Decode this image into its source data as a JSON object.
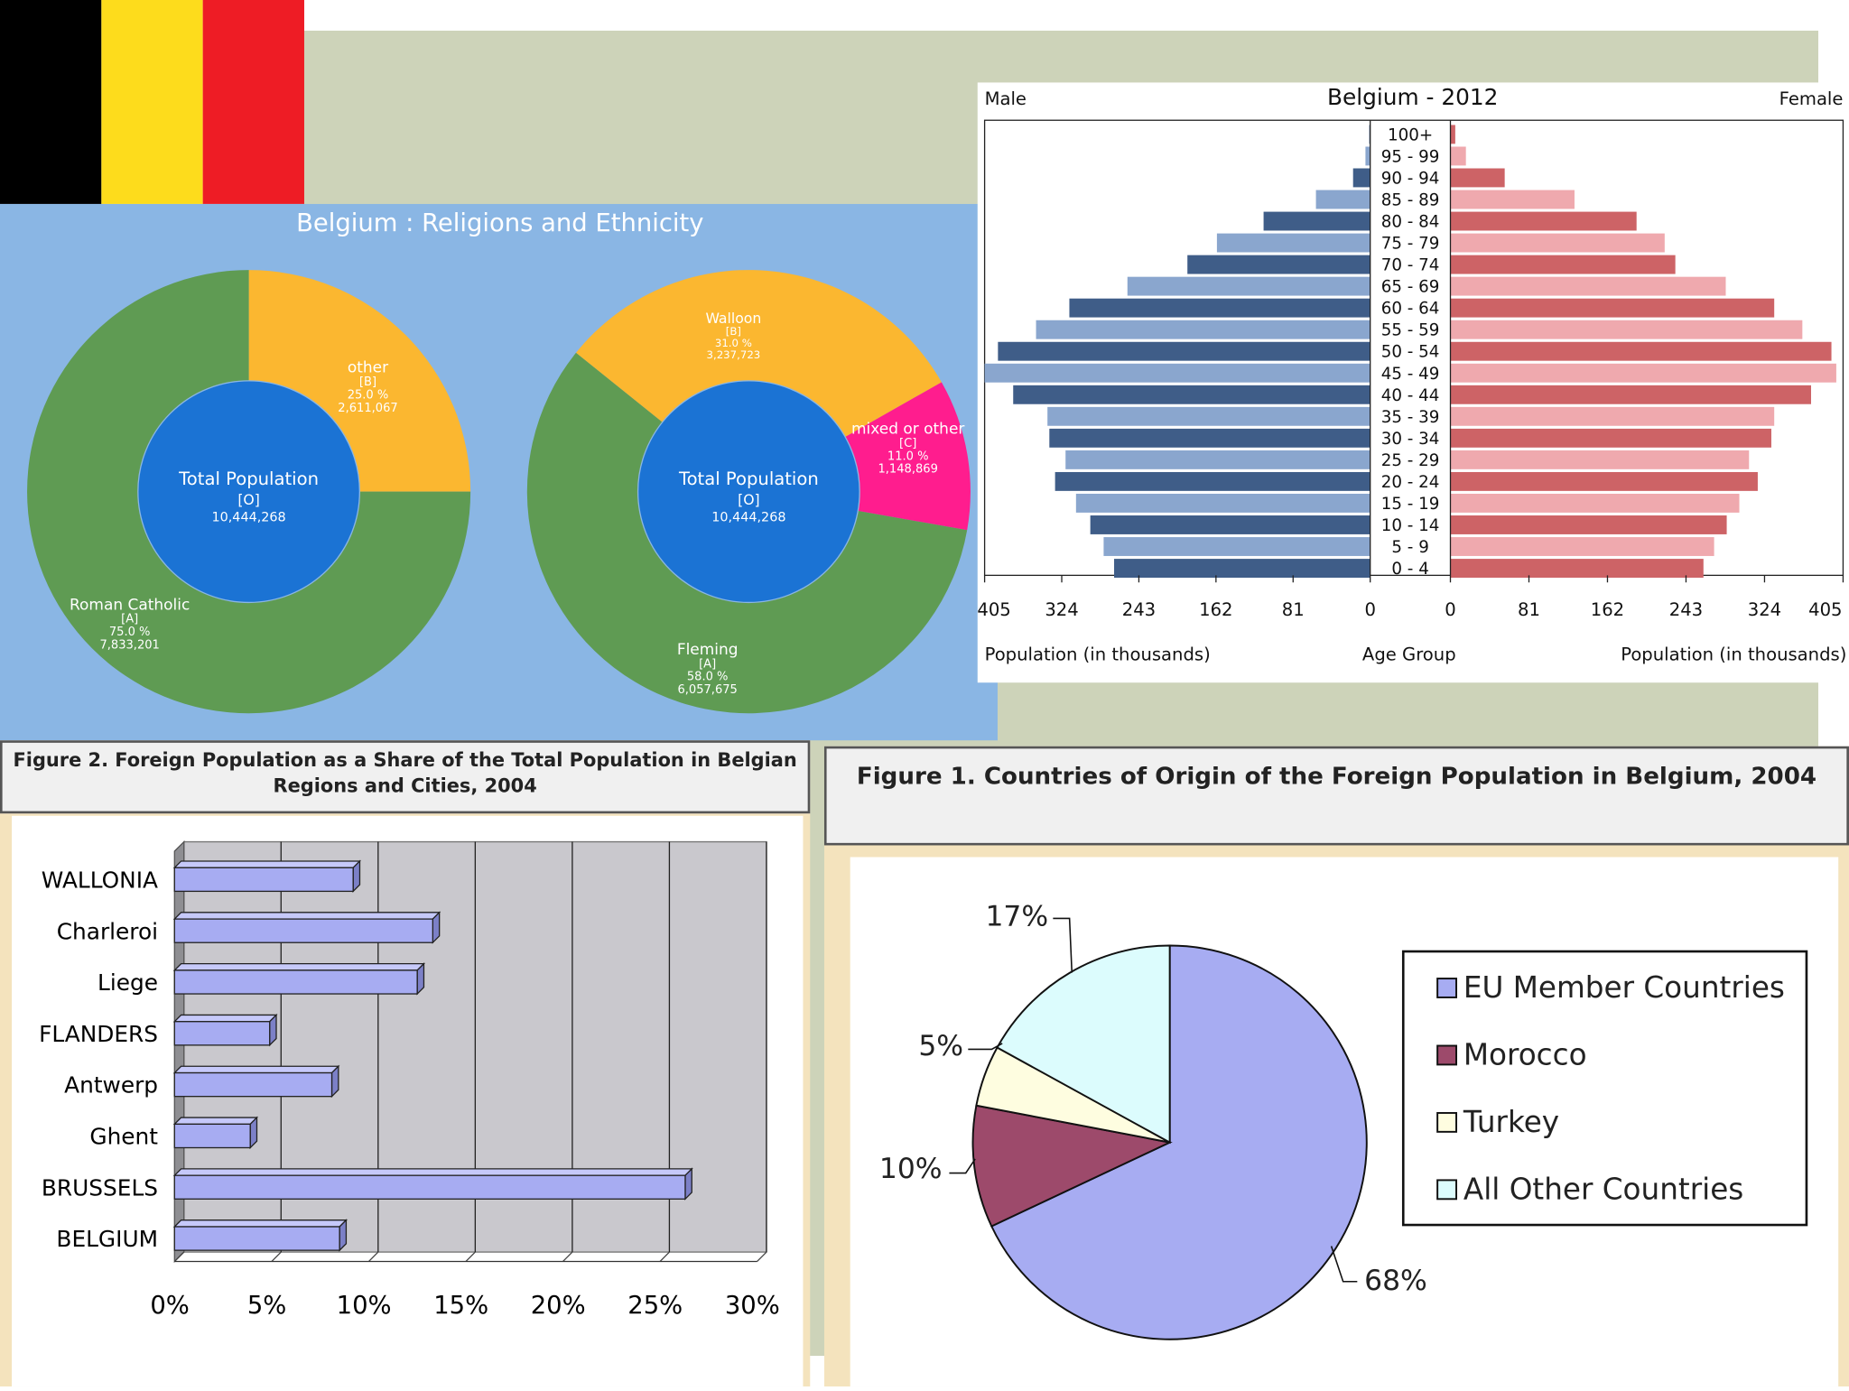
{
  "colors": {
    "flag_black": "#000000",
    "flag_yellow": "#fddc1c",
    "flag_red": "#ee1c25",
    "donut_green": "#5f9b53",
    "donut_yellow": "#fbb730",
    "donut_pink": "#ff1d8e",
    "donut_center": "#1b73d4",
    "pyr_male_dark": "#3f5d88",
    "pyr_male_light": "#8aa6ce",
    "pyr_female_dark": "#cd6366",
    "pyr_female_light": "#efa9ae",
    "bar_fill": "#a7acf2",
    "pie_eu": "#a7acf2",
    "pie_morocco": "#9d4a6b",
    "pie_turkey": "#fefde0",
    "pie_other": "#dcfcfd"
  },
  "chart_data": [
    {
      "id": "religion",
      "type": "pie",
      "title": "Belgium : Religions and Ethnicity",
      "center_label": {
        "name": "Total Population",
        "code": "[O]",
        "value": "10,444,268"
      },
      "slices": [
        {
          "name": "other",
          "code": "[B]",
          "pct_label": "25.0 %",
          "count": "2,611,067",
          "value": 25.0,
          "color": "#fbb730"
        },
        {
          "name": "Roman Catholic",
          "code": "[A]",
          "pct_label": "75.0 %",
          "count": "7,833,201",
          "value": 75.0,
          "color": "#5f9b53"
        }
      ]
    },
    {
      "id": "ethnicity",
      "type": "pie",
      "center_label": {
        "name": "Total Population",
        "code": "[O]",
        "value": "10,444,268"
      },
      "slices": [
        {
          "name": "mixed or other",
          "code": "[C]",
          "pct_label": "11.0 %",
          "count": "1,148,869",
          "value": 11.0,
          "color": "#ff1d8e"
        },
        {
          "name": "Fleming",
          "code": "[A]",
          "pct_label": "58.0 %",
          "count": "6,057,675",
          "value": 58.0,
          "color": "#5f9b53"
        },
        {
          "name": "Walloon",
          "code": "[B]",
          "pct_label": "31.0 %",
          "count": "3,237,723",
          "value": 31.0,
          "color": "#fbb730"
        }
      ]
    },
    {
      "id": "pyramid",
      "type": "bar",
      "title": "Belgium - 2012",
      "left_label": "Male",
      "right_label": "Female",
      "xlabel_left": "Population (in thousands)",
      "xlabel_center": "Age Group",
      "xlabel_right": "Population (in thousands)",
      "xlim": [
        0,
        405
      ],
      "ticks_left": [
        "405",
        "324",
        "243",
        "162",
        "81",
        "0"
      ],
      "ticks_right": [
        "0",
        "81",
        "162",
        "243",
        "324",
        "405"
      ],
      "categories": [
        "100+",
        "95 - 99",
        "90 - 94",
        "85 - 89",
        "80 - 84",
        "75 - 79",
        "70 - 74",
        "65 - 69",
        "60 - 64",
        "55 - 59",
        "50 - 54",
        "45 - 49",
        "40 - 44",
        "35 - 39",
        "30 - 34",
        "25 - 29",
        "20 - 24",
        "15 - 19",
        "10 - 14",
        "5 - 9",
        "0 - 4"
      ],
      "series": [
        {
          "name": "Male",
          "values": [
            1,
            5,
            18,
            57,
            112,
            161,
            192,
            255,
            316,
            351,
            391,
            405,
            375,
            339,
            337,
            320,
            331,
            309,
            294,
            280,
            269
          ]
        },
        {
          "name": "Female",
          "values": [
            5,
            16,
            56,
            128,
            192,
            221,
            232,
            284,
            334,
            363,
            393,
            398,
            372,
            334,
            331,
            308,
            317,
            298,
            285,
            272,
            261
          ]
        }
      ]
    },
    {
      "id": "fig2",
      "type": "bar",
      "title": "Figure 2. Foreign Population as a Share of the Total Population in Belgian Regions and Cities, 2004",
      "categories": [
        "WALLONIA",
        "Charleroi",
        "Liege",
        "FLANDERS",
        "Antwerp",
        "Ghent",
        "BRUSSELS",
        "BELGIUM"
      ],
      "values": [
        9.2,
        13.3,
        12.5,
        4.9,
        8.1,
        3.9,
        26.3,
        8.5
      ],
      "xlim": [
        0,
        30
      ],
      "ticks": [
        "0%",
        "5%",
        "10%",
        "15%",
        "20%",
        "25%",
        "30%"
      ]
    },
    {
      "id": "fig1",
      "type": "pie",
      "title": "Figure 1. Countries of Origin of the Foreign Population in Belgium, 2004",
      "slices": [
        {
          "name": "EU Member Countries",
          "label": "68%",
          "value": 68,
          "color": "#a7acf2"
        },
        {
          "name": "Morocco",
          "label": "10%",
          "value": 10,
          "color": "#9d4a6b"
        },
        {
          "name": "Turkey",
          "label": "5%",
          "value": 5,
          "color": "#fefde0"
        },
        {
          "name": "All Other Countries",
          "label": "17%",
          "value": 17,
          "color": "#dcfcfd"
        }
      ]
    }
  ]
}
